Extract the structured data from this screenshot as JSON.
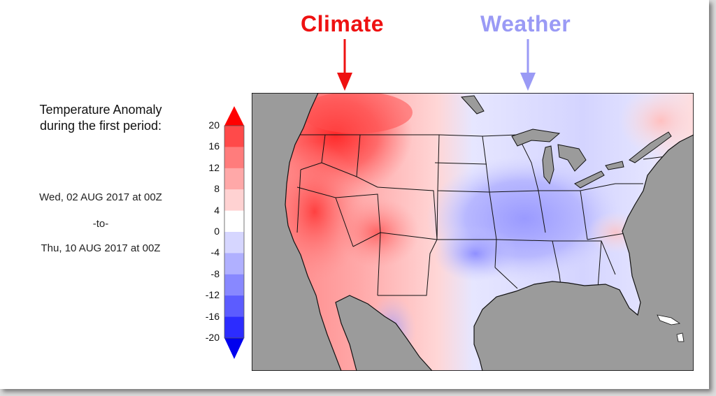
{
  "annotations": {
    "climate": {
      "label": "Climate",
      "color": "#ee1111"
    },
    "weather": {
      "label": "Weather",
      "color": "#9a9af5"
    }
  },
  "panel": {
    "title_line1": "Temperature Anomaly",
    "title_line2": "during the first period:",
    "start": "Wed, 02 AUG 2017 at 00Z",
    "separator": "-to-",
    "end": "Thu, 10 AUG 2017 at 00Z"
  },
  "colorbar": {
    "labels": [
      "20",
      "16",
      "12",
      "8",
      "4",
      "0",
      "-4",
      "-8",
      "-12",
      "-16",
      "-20"
    ],
    "colors": [
      "#ff0000",
      "#ff4a4a",
      "#ff7c7c",
      "#ffa8a8",
      "#ffd2d2",
      "#ffffff",
      "#d6d6ff",
      "#b0b0ff",
      "#8888ff",
      "#5c5cff",
      "#2c2cff",
      "#0000ee"
    ]
  },
  "map": {
    "ocean_color": "#9b9b9b",
    "land_color": "#ffffff"
  }
}
